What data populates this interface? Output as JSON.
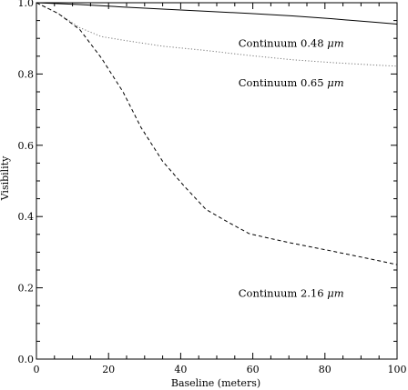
{
  "chart_data": {
    "type": "line",
    "title": "",
    "xlabel": "Baseline (meters)",
    "ylabel": "Visibility",
    "xlim": [
      0,
      100
    ],
    "ylim": [
      0.0,
      1.0
    ],
    "x_ticks": [
      0,
      20,
      40,
      60,
      80,
      100
    ],
    "y_ticks": [
      0.0,
      0.2,
      0.4,
      0.6,
      0.8,
      1.0
    ],
    "x_tick_labels": [
      "0",
      "20",
      "40",
      "60",
      "80",
      "100"
    ],
    "y_tick_labels": [
      "0.0",
      "0.2",
      "0.4",
      "0.6",
      "0.8",
      "1.0"
    ],
    "grid": false,
    "series": [
      {
        "name": "Continuum 0.48 μm",
        "style": "solid",
        "color": "#000000",
        "x": [
          0,
          12,
          24,
          35,
          47,
          59,
          71,
          82,
          94,
          100
        ],
        "y": [
          1.0,
          0.995,
          0.988,
          0.982,
          0.976,
          0.97,
          0.963,
          0.955,
          0.945,
          0.94
        ]
      },
      {
        "name": "Continuum 0.65 μm",
        "style": "dotted",
        "color": "#777777",
        "x": [
          0,
          6,
          12,
          18,
          24,
          35,
          47,
          59,
          71,
          82,
          94,
          100
        ],
        "y": [
          1.0,
          0.97,
          0.93,
          0.905,
          0.895,
          0.878,
          0.866,
          0.852,
          0.84,
          0.832,
          0.825,
          0.822
        ]
      },
      {
        "name": "Continuum 2.16 μm",
        "style": "dashed",
        "color": "#000000",
        "x": [
          0,
          6,
          12,
          18,
          24,
          29,
          35,
          41,
          47,
          53,
          59,
          65,
          71,
          82,
          94,
          100
        ],
        "y": [
          1.0,
          0.97,
          0.925,
          0.845,
          0.75,
          0.65,
          0.555,
          0.485,
          0.42,
          0.385,
          0.352,
          0.338,
          0.325,
          0.303,
          0.278,
          0.265
        ]
      }
    ],
    "annotations": [
      {
        "text": "Continuum 0.48",
        "unit": "μm",
        "x": 56,
        "y": 0.876
      },
      {
        "text": "Continuum 0.65",
        "unit": "μm",
        "x": 56,
        "y": 0.765
      },
      {
        "text": "Continuum 2.16",
        "unit": "μm",
        "x": 56,
        "y": 0.175
      }
    ]
  }
}
